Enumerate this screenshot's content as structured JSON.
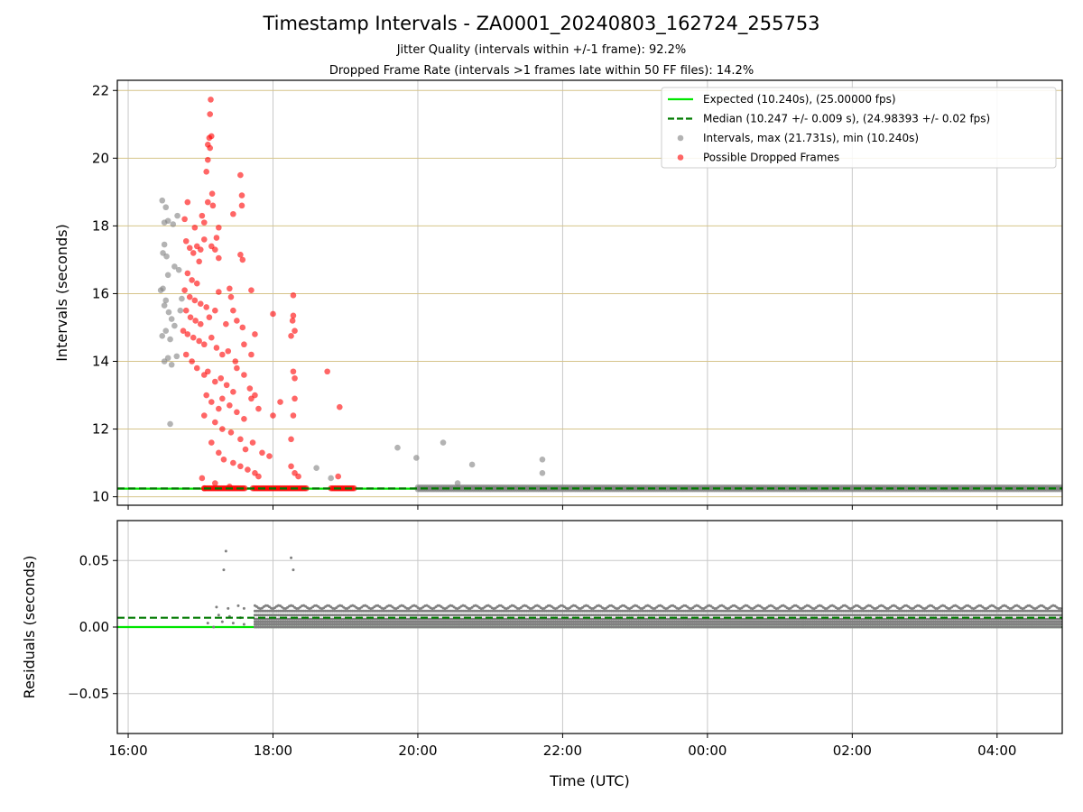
{
  "title": "Timestamp Intervals - ZA0001_20240803_162724_255753",
  "subtitle_1": "Jitter Quality (intervals within +/-1 frame): 92.2%",
  "subtitle_2": "Dropped Frame Rate (intervals >1 frames late within 50 FF files): 14.2%",
  "colors": {
    "expected": "#00e600",
    "median": "#007a00",
    "intervals": "#808080",
    "dropped": "#ff0000",
    "h_grid_top": "#d6c48a",
    "grid": "#c8c8c8"
  },
  "chart_data": [
    {
      "type": "scatter",
      "xlabel": "",
      "ylabel": "Intervals (seconds)",
      "x_unit": "hours since 16:00 UTC",
      "xlim": [
        -0.15,
        12.9
      ],
      "ylim": [
        9.75,
        22.3
      ],
      "x_ticks": [
        0,
        2,
        4,
        6,
        8,
        10,
        12
      ],
      "y_ticks": [
        10,
        12,
        14,
        16,
        18,
        20,
        22
      ],
      "y_tick_labels": [
        "10",
        "12",
        "14",
        "16",
        "18",
        "20",
        "22"
      ],
      "legend": {
        "position": "top-right",
        "entries": [
          "Expected (10.240s), (25.00000 fps)",
          "Median (10.247 +/- 0.009 s), (24.98393 +/- 0.02 fps)",
          "Intervals, max (21.731s), min (10.240s)",
          "Possible Dropped Frames"
        ]
      },
      "series": [
        {
          "name": "Expected (10.240s), (25.00000 fps)",
          "kind": "hline",
          "value": 10.24
        },
        {
          "name": "Median (10.247 +/- 0.009 s), (24.98393 +/- 0.02 fps)",
          "kind": "hline-dashed",
          "value": 10.247
        },
        {
          "name": "Intervals, max (21.731s), min (10.240s)",
          "kind": "scatter",
          "band": {
            "x_from": 4.0,
            "x_to": 12.9,
            "y": 10.25
          },
          "points": [
            [
              0.47,
              18.75
            ],
            [
              0.5,
              18.1
            ],
            [
              0.52,
              18.55
            ],
            [
              0.55,
              18.15
            ],
            [
              0.48,
              17.2
            ],
            [
              0.5,
              17.45
            ],
            [
              0.53,
              17.1
            ],
            [
              0.55,
              16.55
            ],
            [
              0.62,
              18.05
            ],
            [
              0.68,
              18.3
            ],
            [
              0.64,
              16.8
            ],
            [
              0.7,
              16.7
            ],
            [
              0.48,
              16.15
            ],
            [
              0.5,
              15.65
            ],
            [
              0.52,
              15.8
            ],
            [
              0.56,
              15.45
            ],
            [
              0.6,
              15.25
            ],
            [
              0.64,
              15.05
            ],
            [
              0.58,
              14.65
            ],
            [
              0.47,
              14.75
            ],
            [
              0.5,
              14.0
            ],
            [
              0.55,
              14.1
            ],
            [
              0.6,
              13.9
            ],
            [
              0.67,
              14.15
            ],
            [
              0.58,
              12.15
            ],
            [
              0.72,
              15.5
            ],
            [
              0.74,
              15.85
            ],
            [
              0.45,
              16.1
            ],
            [
              0.52,
              14.9
            ],
            [
              2.6,
              10.85
            ],
            [
              2.8,
              10.55
            ],
            [
              3.72,
              11.45
            ],
            [
              3.98,
              11.15
            ],
            [
              4.35,
              11.6
            ],
            [
              4.55,
              10.4
            ],
            [
              4.75,
              10.95
            ],
            [
              5.72,
              11.1
            ],
            [
              5.72,
              10.7
            ]
          ]
        },
        {
          "name": "Possible Dropped Frames",
          "kind": "scatter",
          "points": [
            [
              1.14,
              21.73
            ],
            [
              1.13,
              21.3
            ],
            [
              1.12,
              20.6
            ],
            [
              1.15,
              20.65
            ],
            [
              1.1,
              20.4
            ],
            [
              1.13,
              20.3
            ],
            [
              1.1,
              19.95
            ],
            [
              1.08,
              19.6
            ],
            [
              1.16,
              18.95
            ],
            [
              1.1,
              18.7
            ],
            [
              1.17,
              18.6
            ],
            [
              1.55,
              19.5
            ],
            [
              1.57,
              18.9
            ],
            [
              1.57,
              18.6
            ],
            [
              1.45,
              18.35
            ],
            [
              0.82,
              18.7
            ],
            [
              1.02,
              18.3
            ],
            [
              1.05,
              18.1
            ],
            [
              0.78,
              18.2
            ],
            [
              0.92,
              17.95
            ],
            [
              1.25,
              17.95
            ],
            [
              1.22,
              17.65
            ],
            [
              1.05,
              17.6
            ],
            [
              0.8,
              17.55
            ],
            [
              0.85,
              17.35
            ],
            [
              0.9,
              17.2
            ],
            [
              0.95,
              17.4
            ],
            [
              1.0,
              17.3
            ],
            [
              1.15,
              17.4
            ],
            [
              1.2,
              17.3
            ],
            [
              1.25,
              17.05
            ],
            [
              1.55,
              17.15
            ],
            [
              1.58,
              17.0
            ],
            [
              0.98,
              16.95
            ],
            [
              0.82,
              16.6
            ],
            [
              0.88,
              16.4
            ],
            [
              0.95,
              16.3
            ],
            [
              0.78,
              16.1
            ],
            [
              0.85,
              15.9
            ],
            [
              0.92,
              15.8
            ],
            [
              1.0,
              15.7
            ],
            [
              1.08,
              15.6
            ],
            [
              1.25,
              16.05
            ],
            [
              1.4,
              16.15
            ],
            [
              1.42,
              15.9
            ],
            [
              1.7,
              16.1
            ],
            [
              2.0,
              15.4
            ],
            [
              2.28,
              15.95
            ],
            [
              0.8,
              15.5
            ],
            [
              0.86,
              15.3
            ],
            [
              0.93,
              15.2
            ],
            [
              1.0,
              15.1
            ],
            [
              1.12,
              15.3
            ],
            [
              1.2,
              15.5
            ],
            [
              1.35,
              15.1
            ],
            [
              1.45,
              15.5
            ],
            [
              1.5,
              15.2
            ],
            [
              1.58,
              15.0
            ],
            [
              1.75,
              14.8
            ],
            [
              0.76,
              14.9
            ],
            [
              0.82,
              14.8
            ],
            [
              0.9,
              14.7
            ],
            [
              0.98,
              14.6
            ],
            [
              1.05,
              14.5
            ],
            [
              1.15,
              14.7
            ],
            [
              1.22,
              14.4
            ],
            [
              1.3,
              14.2
            ],
            [
              1.38,
              14.3
            ],
            [
              1.48,
              14.0
            ],
            [
              1.6,
              14.5
            ],
            [
              1.7,
              14.2
            ],
            [
              2.25,
              14.75
            ],
            [
              2.27,
              15.2
            ],
            [
              2.3,
              14.9
            ],
            [
              2.28,
              15.35
            ],
            [
              0.8,
              14.2
            ],
            [
              0.88,
              14.0
            ],
            [
              0.95,
              13.8
            ],
            [
              1.05,
              13.6
            ],
            [
              1.1,
              13.7
            ],
            [
              1.2,
              13.4
            ],
            [
              1.28,
              13.5
            ],
            [
              1.36,
              13.3
            ],
            [
              1.45,
              13.1
            ],
            [
              1.5,
              13.8
            ],
            [
              1.6,
              13.6
            ],
            [
              1.68,
              13.2
            ],
            [
              1.75,
              13.0
            ],
            [
              2.28,
              13.7
            ],
            [
              2.3,
              13.5
            ],
            [
              1.08,
              13.0
            ],
            [
              1.15,
              12.8
            ],
            [
              1.25,
              12.6
            ],
            [
              1.3,
              12.9
            ],
            [
              1.4,
              12.7
            ],
            [
              1.5,
              12.5
            ],
            [
              1.6,
              12.3
            ],
            [
              1.7,
              12.9
            ],
            [
              1.8,
              12.6
            ],
            [
              2.1,
              12.8
            ],
            [
              2.3,
              12.9
            ],
            [
              2.0,
              12.4
            ],
            [
              1.05,
              12.4
            ],
            [
              1.2,
              12.2
            ],
            [
              1.3,
              12.0
            ],
            [
              1.42,
              11.9
            ],
            [
              1.55,
              11.7
            ],
            [
              1.62,
              11.4
            ],
            [
              1.72,
              11.6
            ],
            [
              1.85,
              11.3
            ],
            [
              1.95,
              11.2
            ],
            [
              2.25,
              11.7
            ],
            [
              2.28,
              12.4
            ],
            [
              1.15,
              11.6
            ],
            [
              1.25,
              11.3
            ],
            [
              1.32,
              11.1
            ],
            [
              1.45,
              11.0
            ],
            [
              1.55,
              10.9
            ],
            [
              1.65,
              10.8
            ],
            [
              1.75,
              10.7
            ],
            [
              1.8,
              10.6
            ],
            [
              2.25,
              10.9
            ],
            [
              2.3,
              10.7
            ],
            [
              2.35,
              10.6
            ],
            [
              2.75,
              13.7
            ],
            [
              2.92,
              12.65
            ],
            [
              2.9,
              10.6
            ],
            [
              1.02,
              10.55
            ],
            [
              1.05,
              10.25
            ],
            [
              1.2,
              10.4
            ],
            [
              1.4,
              10.3
            ]
          ],
          "band": [
            {
              "x_from": 1.05,
              "x_to": 1.62,
              "y": 10.25
            },
            {
              "x_from": 1.72,
              "x_to": 2.48,
              "y": 10.25
            },
            {
              "x_from": 2.8,
              "x_to": 3.12,
              "y": 10.25
            }
          ]
        }
      ]
    },
    {
      "type": "scatter",
      "xlabel": "Time (UTC)",
      "ylabel": "Residuals (seconds)",
      "x_unit": "hours since 16:00 UTC",
      "xlim": [
        -0.15,
        12.9
      ],
      "ylim": [
        -0.08,
        0.08
      ],
      "x_ticks": [
        0,
        2,
        4,
        6,
        8,
        10,
        12
      ],
      "x_tick_labels": [
        "16:00",
        "18:00",
        "20:00",
        "22:00",
        "00:00",
        "02:00",
        "04:00"
      ],
      "y_ticks": [
        -0.05,
        0.0,
        0.05
      ],
      "y_tick_labels": [
        "−0.05",
        "0.00",
        "0.05"
      ],
      "series": [
        {
          "name": "Expected",
          "kind": "hline",
          "value": 0.0
        },
        {
          "name": "Median",
          "kind": "hline-dashed",
          "value": 0.007
        },
        {
          "name": "Residuals",
          "kind": "scatter",
          "levels": [
            0.0,
            0.002,
            0.004,
            0.006,
            0.009,
            0.012,
            0.015
          ],
          "x_from": 1.75,
          "x_to": 12.9,
          "early_points": [
            [
              1.35,
              0.057
            ],
            [
              1.32,
              0.043
            ],
            [
              2.25,
              0.052
            ],
            [
              2.28,
              0.043
            ],
            [
              1.22,
              0.015
            ],
            [
              1.38,
              0.014
            ],
            [
              1.52,
              0.016
            ],
            [
              1.6,
              0.014
            ],
            [
              1.25,
              0.009
            ],
            [
              1.4,
              0.008
            ],
            [
              1.55,
              0.007
            ],
            [
              1.3,
              0.004
            ],
            [
              1.45,
              0.003
            ],
            [
              1.6,
              0.002
            ],
            [
              1.1,
              0.003
            ],
            [
              1.18,
              0.0
            ]
          ]
        }
      ]
    }
  ]
}
